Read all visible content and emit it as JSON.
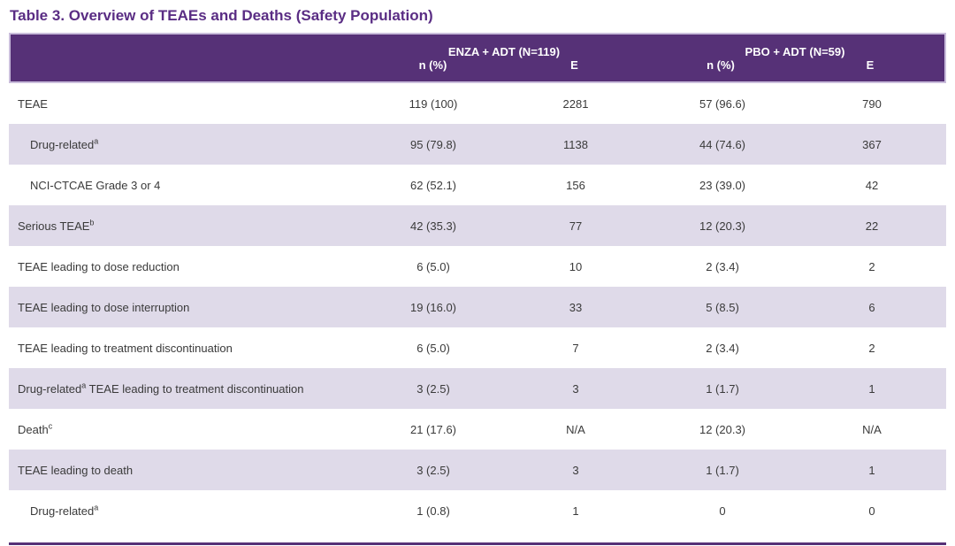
{
  "title": "Table 3. Overview of TEAEs and Deaths (Safety Population)",
  "colors": {
    "header_background": "#563177",
    "header_text": "#FFFFFF",
    "title_text": "#5A2D84",
    "alt_row_background": "#DFDAE9",
    "body_text": "#3A3A3A",
    "header_border": "#C9BDDB"
  },
  "table": {
    "groups": [
      {
        "label": "ENZA + ADT (N=119)"
      },
      {
        "label": "PBO + ADT (N=59)"
      }
    ],
    "subheaders": [
      "n (%)",
      "E",
      "n (%)",
      "E"
    ],
    "rows": [
      {
        "label": "TEAE",
        "sup": "",
        "label_after": "",
        "indent": 0,
        "values": [
          "119 (100)",
          "2281",
          "57 (96.6)",
          "790"
        ]
      },
      {
        "label": "Drug-related",
        "sup": "a",
        "label_after": "",
        "indent": 1,
        "values": [
          "95 (79.8)",
          "1138",
          "44 (74.6)",
          "367"
        ]
      },
      {
        "label": "NCI-CTCAE Grade 3 or 4",
        "sup": "",
        "label_after": "",
        "indent": 1,
        "values": [
          "62 (52.1)",
          "156",
          "23 (39.0)",
          "42"
        ]
      },
      {
        "label": "Serious TEAE",
        "sup": "b",
        "label_after": "",
        "indent": 0,
        "values": [
          "42 (35.3)",
          "77",
          "12 (20.3)",
          "22"
        ]
      },
      {
        "label": "TEAE leading to dose reduction",
        "sup": "",
        "label_after": "",
        "indent": 0,
        "values": [
          "6 (5.0)",
          "10",
          "2 (3.4)",
          "2"
        ]
      },
      {
        "label": "TEAE leading to dose interruption",
        "sup": "",
        "label_after": "",
        "indent": 0,
        "values": [
          "19 (16.0)",
          "33",
          "5 (8.5)",
          "6"
        ]
      },
      {
        "label": "TEAE leading to treatment discontinuation",
        "sup": "",
        "label_after": "",
        "indent": 0,
        "values": [
          "6 (5.0)",
          "7",
          "2 (3.4)",
          "2"
        ]
      },
      {
        "label": "Drug-related",
        "sup": "a",
        "label_after": " TEAE leading to treatment discontinuation",
        "indent": 0,
        "values": [
          "3 (2.5)",
          "3",
          "1 (1.7)",
          "1"
        ]
      },
      {
        "label": "Death",
        "sup": "c",
        "label_after": "",
        "indent": 0,
        "values": [
          "21 (17.6)",
          "N/A",
          "12 (20.3)",
          "N/A"
        ]
      },
      {
        "label": "TEAE leading to death",
        "sup": "",
        "label_after": "",
        "indent": 0,
        "values": [
          "3 (2.5)",
          "3",
          "1 (1.7)",
          "1"
        ]
      },
      {
        "label": "Drug-related",
        "sup": "a",
        "label_after": "",
        "indent": 1,
        "values": [
          "1 (0.8)",
          "1",
          "0",
          "0"
        ]
      }
    ]
  }
}
